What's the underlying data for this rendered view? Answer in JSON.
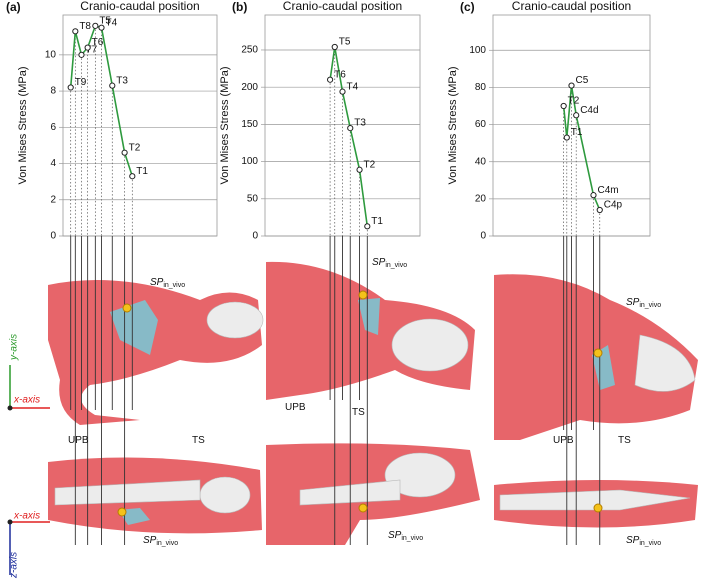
{
  "chart_data": [
    {
      "type": "line",
      "panel_label": "(a)",
      "title": "Cranio-caudal position",
      "y_label": "Von Mises Stress (MPa)",
      "x": [
        5,
        8,
        12,
        16,
        21,
        25,
        32,
        40,
        45
      ],
      "xlim": [
        0,
        100
      ],
      "point_labels": [
        "T9",
        "T8",
        "T7",
        "T6",
        "T5",
        "T4",
        "T3",
        "T2",
        "T1"
      ],
      "values": [
        8.2,
        11.3,
        10.0,
        10.4,
        11.6,
        11.5,
        8.3,
        4.6,
        3.3
      ],
      "color": "#2e9a3e",
      "ylim": [
        0,
        12.2
      ],
      "yticks": [
        0,
        2,
        4,
        6,
        8,
        10
      ],
      "grid": true,
      "annotations": [
        {
          "text": "SP",
          "sub": "in_vivo"
        },
        {
          "text": "TS"
        },
        {
          "text": "UPB"
        },
        {
          "text": "SP",
          "sub": "in_vivo"
        }
      ]
    },
    {
      "type": "line",
      "panel_label": "(b)",
      "title": "Cranio-caudal position",
      "y_label": "Von Mises Stress (MPa)",
      "x": [
        42,
        45,
        50,
        55,
        61,
        66
      ],
      "xlim": [
        0,
        100
      ],
      "point_labels": [
        "T6",
        "T5",
        "T4",
        "T3",
        "T2",
        "T1"
      ],
      "values": [
        210,
        254,
        194,
        145,
        89,
        13
      ],
      "color": "#2e9a3e",
      "ylim": [
        0,
        297
      ],
      "yticks": [
        0,
        50,
        100,
        150,
        200,
        250
      ],
      "grid": true,
      "annotations": [
        {
          "text": "SP",
          "sub": "in_vivo"
        },
        {
          "text": "UPB"
        },
        {
          "text": "TS"
        },
        {
          "text": "SP",
          "sub": "in_vivo"
        }
      ]
    },
    {
      "type": "line",
      "panel_label": "(c)",
      "title": "Cranio-caudal position",
      "y_label": "Von Mises Stress (MPa)",
      "x": [
        45,
        47,
        50,
        53,
        64,
        68
      ],
      "xlim": [
        0,
        100
      ],
      "point_labels": [
        "T2",
        "T1",
        "C5",
        "C4d",
        "C4m",
        "C4p"
      ],
      "values": [
        70,
        53,
        81,
        65,
        22,
        14
      ],
      "color": "#2e9a3e",
      "ylim": [
        0,
        119
      ],
      "yticks": [
        0,
        20,
        40,
        60,
        80,
        100
      ],
      "grid": true,
      "annotations": [
        {
          "text": "SP",
          "sub": "in_vivo"
        },
        {
          "text": "UPB"
        },
        {
          "text": "TS"
        },
        {
          "text": "SP",
          "sub": "in_vivo"
        }
      ]
    }
  ],
  "axis_indicators": [
    "y-axis",
    "x-axis",
    "x-axis",
    "z-axis"
  ]
}
